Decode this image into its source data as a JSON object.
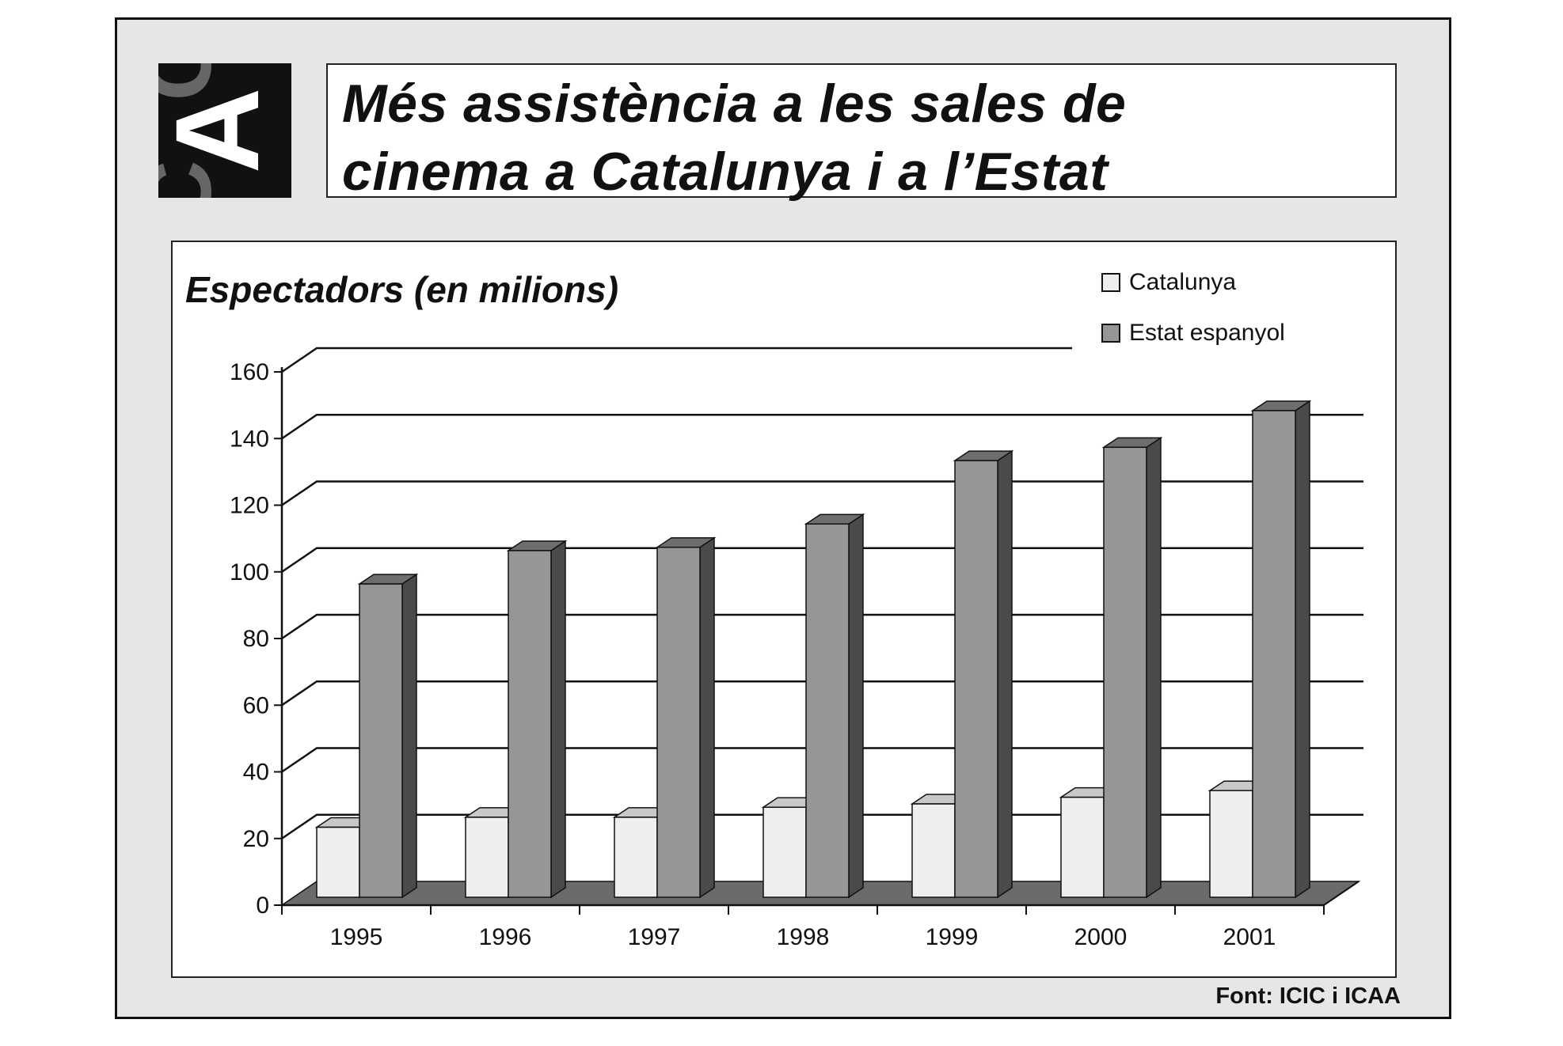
{
  "logo": {
    "text": "CAC",
    "bg": "#111111",
    "fg": "#ffffff",
    "grey": "#666666"
  },
  "header": {
    "title_line1": "Més assistència a les sales de",
    "title_line2": "cinema a Catalunya i a l’Estat"
  },
  "source": "Font: ICIC i ICAA",
  "colors": {
    "catalunya_front": "#eeeeee",
    "catalunya_top": "#c8c8c8",
    "catalunya_side": "#a8a8a8",
    "estat_front": "#969696",
    "estat_top": "#6e6e6e",
    "estat_side": "#4a4a4a",
    "floor": "#6b6b6b",
    "gridline": "#111111"
  },
  "chart_data": {
    "type": "bar",
    "title": "Espectadors (en milions)",
    "xlabel": "",
    "ylabel": "",
    "categories": [
      "1995",
      "1996",
      "1997",
      "1998",
      "1999",
      "2000",
      "2001"
    ],
    "series": [
      {
        "name": "Catalunya",
        "values": [
          21,
          24,
          24,
          27,
          28,
          30,
          32
        ]
      },
      {
        "name": "Estat espanyol",
        "values": [
          94,
          104,
          105,
          112,
          131,
          135,
          146
        ]
      }
    ],
    "ylim": [
      0,
      160
    ],
    "yticks": [
      "0",
      "20",
      "40",
      "60",
      "80",
      "100",
      "120",
      "140",
      "160"
    ],
    "grid": true,
    "legend": "top-right"
  }
}
